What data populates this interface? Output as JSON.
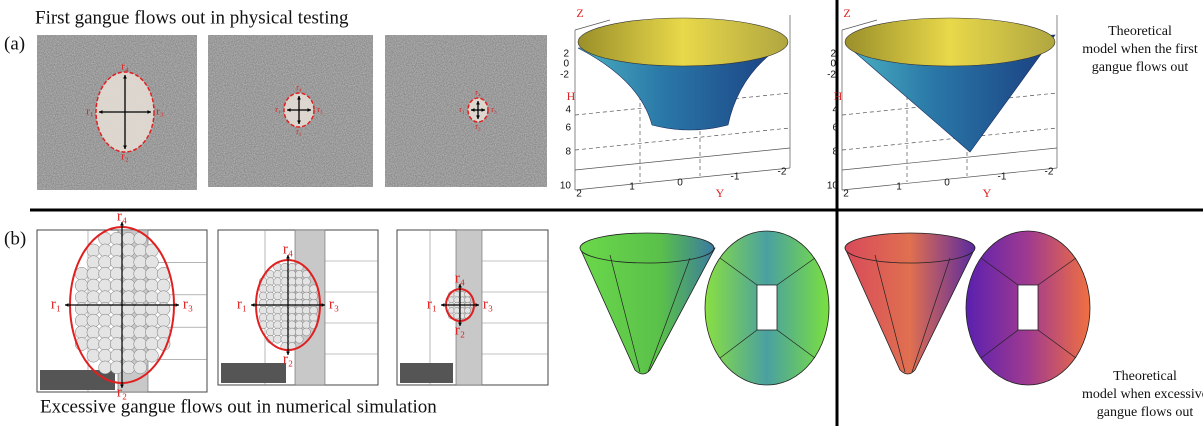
{
  "panel_a": {
    "label": "(a)",
    "caption": "First gangue flows out in physical testing",
    "photo_labels": [
      "r₁",
      "r₂",
      "r₃",
      "r₄"
    ],
    "plot": {
      "z_label": "Z",
      "h_label": "H",
      "y_label": "Y",
      "z_ticks": [
        "2",
        "0",
        "-2"
      ],
      "h_ticks": [
        "4",
        "6",
        "8",
        "10"
      ],
      "y_ticks": [
        "2",
        "1",
        "0",
        "-1",
        "-2"
      ]
    },
    "model_caption": [
      "Theoretical",
      "model when the first",
      "gangue flows out"
    ]
  },
  "panel_b": {
    "label": "(b)",
    "caption": "Excessive gangue flows out in numerical simulation",
    "sim_labels": [
      "r₁",
      "r₂",
      "r₃",
      "r₄"
    ],
    "model_caption": [
      "Theoretical",
      "model when excessive",
      "gangue flows out"
    ]
  }
}
